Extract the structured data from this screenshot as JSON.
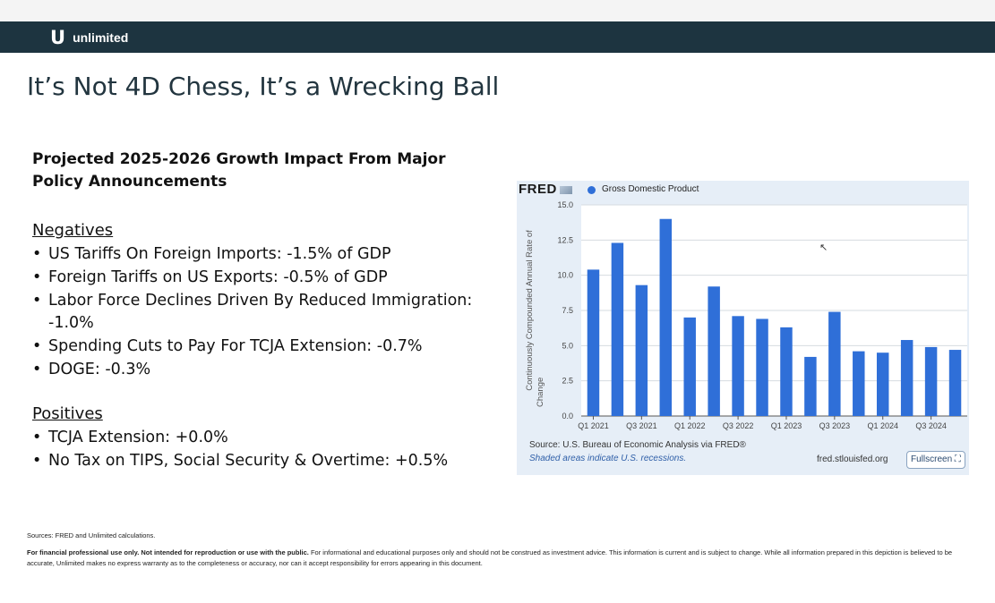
{
  "brand": {
    "name": "unlimited",
    "mark": "U"
  },
  "slide_title": "It’s Not 4D Chess, It’s a Wrecking Ball",
  "subtitle": "Projected 2025-2026 Growth Impact From Major Policy Announcements",
  "negatives": {
    "heading": "Negatives",
    "items": [
      "US Tariffs On Foreign Imports: -1.5% of GDP",
      "Foreign Tariffs on US Exports: -0.5% of GDP",
      "Labor Force Declines Driven By Reduced Immigration: -1.0%",
      "Spending Cuts to Pay For TCJA Extension: -0.7%",
      "DOGE: -0.3%"
    ]
  },
  "positives": {
    "heading": "Positives",
    "items": [
      "TCJA Extension: +0.0%",
      "No Tax on TIPS, Social Security & Overtime: +0.5%"
    ]
  },
  "fred": {
    "logo": "FRED",
    "source": "Source: U.S. Bureau of Economic Analysis via FRED®",
    "shaded_note": "Shaded areas indicate U.S. recessions.",
    "url": "fred.stlouisfed.org",
    "fullscreen_label": "Fullscreen ⛶"
  },
  "chart_data": {
    "type": "bar",
    "legend": "Gross Domestic Product",
    "ylabel": "Continuously Compounded Annual Rate of Change",
    "ylim": [
      0,
      15
    ],
    "yticks": [
      "0.0",
      "2.5",
      "5.0",
      "7.5",
      "10.0",
      "12.5",
      "15.0"
    ],
    "categories": [
      "Q1 2021",
      "Q2 2021",
      "Q3 2021",
      "Q4 2021",
      "Q1 2022",
      "Q2 2022",
      "Q3 2022",
      "Q4 2022",
      "Q1 2023",
      "Q2 2023",
      "Q3 2023",
      "Q4 2023",
      "Q1 2024",
      "Q2 2024",
      "Q3 2024",
      "Q4 2024"
    ],
    "xtick_labels": [
      "Q1 2021",
      "Q3 2021",
      "Q1 2022",
      "Q3 2022",
      "Q1 2023",
      "Q3 2023",
      "Q1 2024",
      "Q3 2024"
    ],
    "values": [
      10.4,
      12.3,
      9.3,
      14.0,
      7.0,
      9.2,
      7.1,
      6.9,
      6.3,
      4.2,
      7.4,
      4.6,
      4.5,
      5.4,
      4.9,
      4.7
    ],
    "bar_color": "#2f6fd8",
    "grid": true
  },
  "footer": {
    "sources": "Sources: FRED and Unlimited calculations.",
    "disclaimer_bold": "For financial professional use only.  Not intended for reproduction or use with the public.",
    "disclaimer_text": " For informational and educational purposes only and should not be construed as investment advice. This information is current and is subject to change. While all information prepared in this depiction is believed to be accurate, Unlimited makes no express warranty as to the completeness or accuracy, nor can it accept responsibility for errors appearing in this document."
  }
}
